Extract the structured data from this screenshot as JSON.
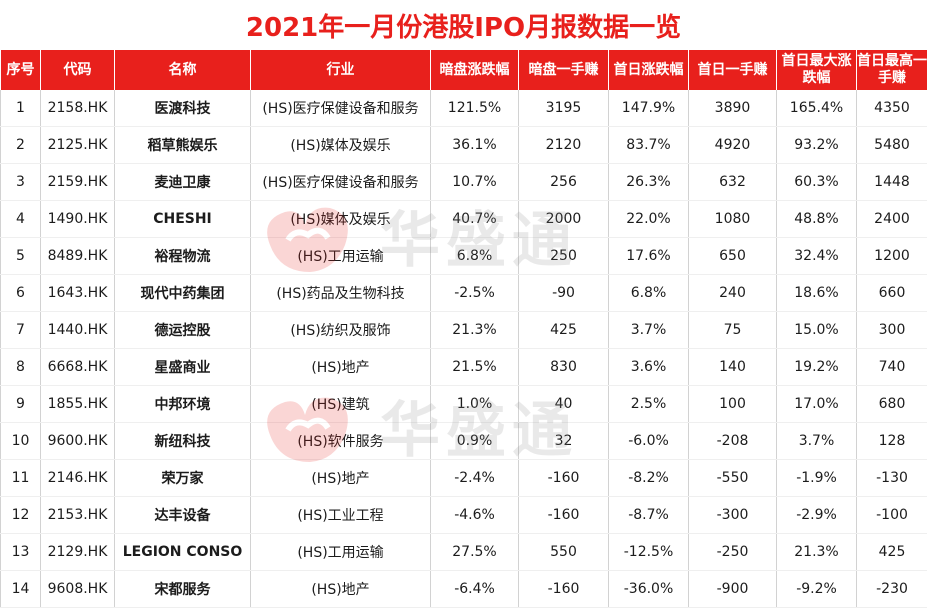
{
  "title": "2021年一月份港股IPO月报数据一览",
  "watermark": "华盛通",
  "colors": {
    "accent": "#e8201c",
    "header_text": "#ffffff"
  },
  "columns": [
    "序号",
    "代码",
    "名称",
    "行业",
    "暗盘涨跌幅",
    "暗盘一手赚",
    "首日涨跌幅",
    "首日一手赚",
    "首日最大涨跌幅",
    "首日最高一手赚"
  ],
  "rows": [
    {
      "no": "1",
      "code": "2158.HK",
      "name": "医渡科技",
      "industry": "(HS)医疗保健设备和服务",
      "dark_pct": "121.5%",
      "dark_lot": "3195",
      "day1_pct": "147.9%",
      "day1_lot": "3890",
      "max_pct": "165.4%",
      "max_lot": "4350"
    },
    {
      "no": "2",
      "code": "2125.HK",
      "name": "稻草熊娱乐",
      "industry": "(HS)媒体及娱乐",
      "dark_pct": "36.1%",
      "dark_lot": "2120",
      "day1_pct": "83.7%",
      "day1_lot": "4920",
      "max_pct": "93.2%",
      "max_lot": "5480"
    },
    {
      "no": "3",
      "code": "2159.HK",
      "name": "麦迪卫康",
      "industry": "(HS)医疗保健设备和服务",
      "dark_pct": "10.7%",
      "dark_lot": "256",
      "day1_pct": "26.3%",
      "day1_lot": "632",
      "max_pct": "60.3%",
      "max_lot": "1448"
    },
    {
      "no": "4",
      "code": "1490.HK",
      "name": "CHESHI",
      "industry": "(HS)媒体及娱乐",
      "dark_pct": "40.7%",
      "dark_lot": "2000",
      "day1_pct": "22.0%",
      "day1_lot": "1080",
      "max_pct": "48.8%",
      "max_lot": "2400"
    },
    {
      "no": "5",
      "code": "8489.HK",
      "name": "裕程物流",
      "industry": "(HS)工用运输",
      "dark_pct": "6.8%",
      "dark_lot": "250",
      "day1_pct": "17.6%",
      "day1_lot": "650",
      "max_pct": "32.4%",
      "max_lot": "1200"
    },
    {
      "no": "6",
      "code": "1643.HK",
      "name": "现代中药集团",
      "industry": "(HS)药品及生物科技",
      "dark_pct": "-2.5%",
      "dark_lot": "-90",
      "day1_pct": "6.8%",
      "day1_lot": "240",
      "max_pct": "18.6%",
      "max_lot": "660"
    },
    {
      "no": "7",
      "code": "1440.HK",
      "name": "德运控股",
      "industry": "(HS)纺织及服饰",
      "dark_pct": "21.3%",
      "dark_lot": "425",
      "day1_pct": "3.7%",
      "day1_lot": "75",
      "max_pct": "15.0%",
      "max_lot": "300"
    },
    {
      "no": "8",
      "code": "6668.HK",
      "name": "星盛商业",
      "industry": "(HS)地产",
      "dark_pct": "21.5%",
      "dark_lot": "830",
      "day1_pct": "3.6%",
      "day1_lot": "140",
      "max_pct": "19.2%",
      "max_lot": "740"
    },
    {
      "no": "9",
      "code": "1855.HK",
      "name": "中邦环境",
      "industry": "(HS)建筑",
      "dark_pct": "1.0%",
      "dark_lot": "40",
      "day1_pct": "2.5%",
      "day1_lot": "100",
      "max_pct": "17.0%",
      "max_lot": "680"
    },
    {
      "no": "10",
      "code": "9600.HK",
      "name": "新纽科技",
      "industry": "(HS)软件服务",
      "dark_pct": "0.9%",
      "dark_lot": "32",
      "day1_pct": "-6.0%",
      "day1_lot": "-208",
      "max_pct": "3.7%",
      "max_lot": "128"
    },
    {
      "no": "11",
      "code": "2146.HK",
      "name": "荣万家",
      "industry": "(HS)地产",
      "dark_pct": "-2.4%",
      "dark_lot": "-160",
      "day1_pct": "-8.2%",
      "day1_lot": "-550",
      "max_pct": "-1.9%",
      "max_lot": "-130"
    },
    {
      "no": "12",
      "code": "2153.HK",
      "name": "达丰设备",
      "industry": "(HS)工业工程",
      "dark_pct": "-4.6%",
      "dark_lot": "-160",
      "day1_pct": "-8.7%",
      "day1_lot": "-300",
      "max_pct": "-2.9%",
      "max_lot": "-100"
    },
    {
      "no": "13",
      "code": "2129.HK",
      "name": "LEGION CONSO",
      "industry": "(HS)工用运输",
      "dark_pct": "27.5%",
      "dark_lot": "550",
      "day1_pct": "-12.5%",
      "day1_lot": "-250",
      "max_pct": "21.3%",
      "max_lot": "425"
    },
    {
      "no": "14",
      "code": "9608.HK",
      "name": "宋都服务",
      "industry": "(HS)地产",
      "dark_pct": "-6.4%",
      "dark_lot": "-160",
      "day1_pct": "-36.0%",
      "day1_lot": "-900",
      "max_pct": "-9.2%",
      "max_lot": "-230"
    }
  ]
}
